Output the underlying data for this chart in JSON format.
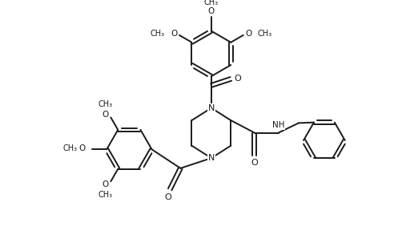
{
  "background": "#ffffff",
  "line_color": "#1a1a1a",
  "line_width": 1.4,
  "font_size": 7.5,
  "figsize": [
    4.92,
    3.13
  ],
  "dpi": 100,
  "xlim": [
    0,
    9.84
  ],
  "ylim": [
    0,
    6.26
  ]
}
